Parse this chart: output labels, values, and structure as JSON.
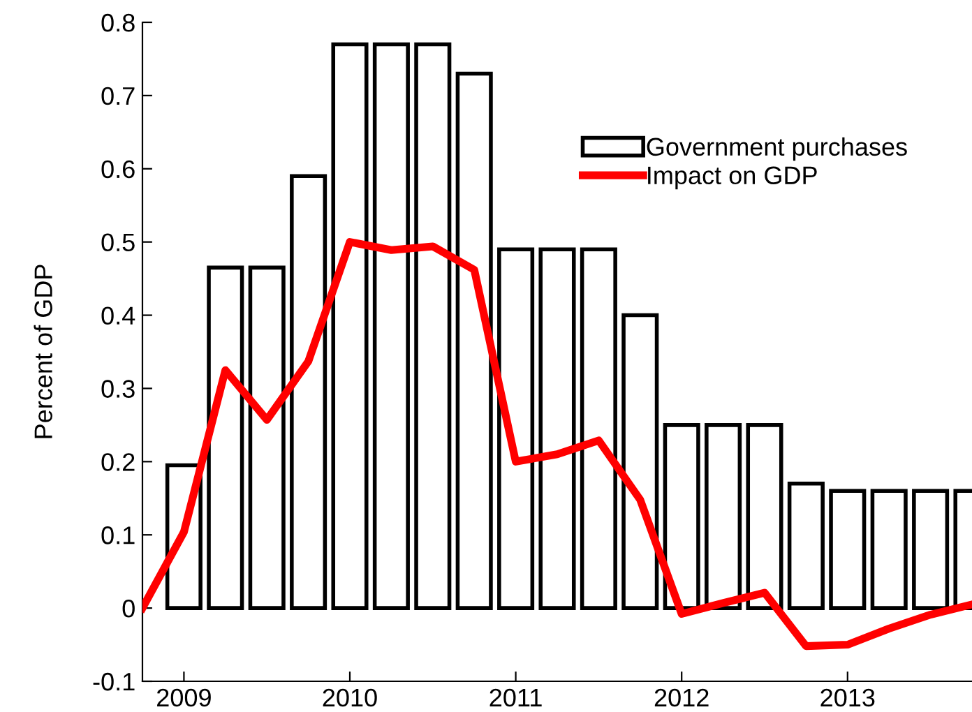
{
  "chart_data": {
    "type": "bar",
    "ylabel": "Percent of GDP",
    "series": [
      {
        "name": "Government purchases",
        "color": "#ffffff",
        "x": [
          2009.0,
          2009.25,
          2009.5,
          2009.75,
          2010.0,
          2010.25,
          2010.5,
          2010.75,
          2011.0,
          2011.25,
          2011.5,
          2011.75,
          2012.0,
          2012.25,
          2012.5,
          2012.75,
          2013.0,
          2013.25,
          2013.5,
          2013.75
        ],
        "values": [
          0.195,
          0.465,
          0.465,
          0.59,
          0.77,
          0.77,
          0.77,
          0.73,
          0.49,
          0.49,
          0.49,
          0.4,
          0.25,
          0.25,
          0.25,
          0.17,
          0.16,
          0.16,
          0.16,
          0.16
        ]
      },
      {
        "name": "Impact on GDP",
        "type": "line",
        "color": "#ff0000",
        "x": [
          2008.75,
          2009.0,
          2009.25,
          2009.5,
          2009.75,
          2010.0,
          2010.25,
          2010.5,
          2010.75,
          2011.0,
          2011.25,
          2011.5,
          2011.75,
          2012.0,
          2012.25,
          2012.5,
          2012.75,
          2013.0,
          2013.25,
          2013.5,
          2013.75
        ],
        "values": [
          0.0,
          0.104,
          0.325,
          0.257,
          0.337,
          0.5,
          0.489,
          0.494,
          0.462,
          0.2,
          0.21,
          0.229,
          0.148,
          -0.008,
          0.007,
          0.021,
          -0.052,
          -0.05,
          -0.028,
          -0.009,
          0.005
        ]
      }
    ],
    "xlim": [
      2008.75,
      2013.75
    ],
    "xticks": [
      2009,
      2010,
      2011,
      2012,
      2013
    ],
    "ylim": [
      -0.1,
      0.8
    ],
    "yticks": [
      -0.1,
      0,
      0.1,
      0.2,
      0.3,
      0.4,
      0.5,
      0.6,
      0.7,
      0.8
    ],
    "grid": false,
    "legend": "top right",
    "marker": "none",
    "line_style": "solid"
  }
}
